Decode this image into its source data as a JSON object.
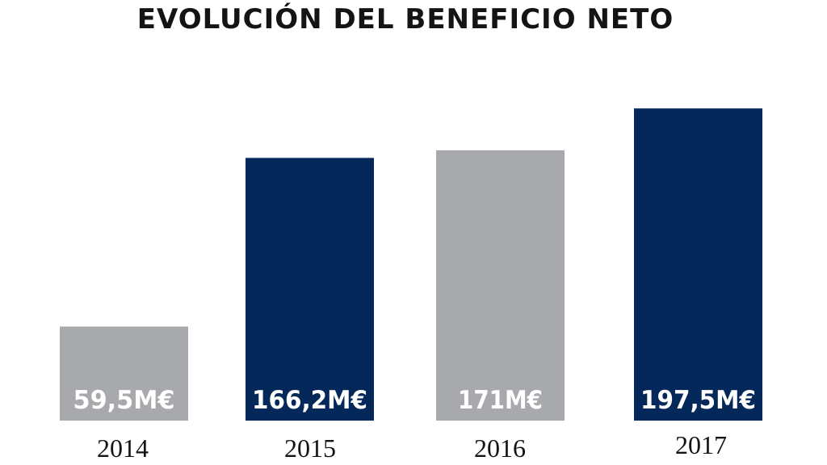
{
  "chart_data": {
    "type": "bar",
    "title": "EVOLUCIÓN DEL BENEFICIO NETO",
    "categories": [
      "2014",
      "2015",
      "2016",
      "2017"
    ],
    "values": [
      59.5,
      166.2,
      171,
      197.5
    ],
    "value_labels": [
      "59,5M€",
      "166,2M€",
      "171M€",
      "197,5M€"
    ],
    "bar_colors": [
      "#a7a9ac",
      "#05285a",
      "#a7a9ac",
      "#05285a"
    ],
    "xlabel": "",
    "ylabel": "",
    "grid": false,
    "legend": "none"
  }
}
